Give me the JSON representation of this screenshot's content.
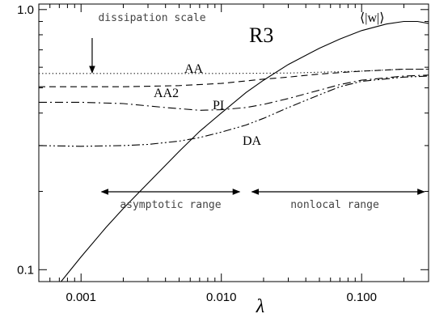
{
  "chart_data": {
    "type": "line",
    "title": "R3",
    "xlabel": "λ",
    "ylabel": "",
    "x_scale": "log",
    "y_scale": "log",
    "xlim": [
      0.0005,
      0.3
    ],
    "ylim": [
      0.09,
      1.05
    ],
    "x_ticks": [
      {
        "value": 0.001,
        "label": "0.001"
      },
      {
        "value": 0.01,
        "label": "0.010"
      },
      {
        "value": 0.1,
        "label": "0.100"
      }
    ],
    "y_ticks": [
      {
        "value": 0.1,
        "label": "0.1"
      },
      {
        "value": 1.0,
        "label": "1.0"
      }
    ],
    "grid": false,
    "series": [
      {
        "name": "⟨|w|⟩",
        "style": "solid",
        "x": [
          0.00072,
          0.001,
          0.0015,
          0.002,
          0.003,
          0.005,
          0.007,
          0.01,
          0.015,
          0.02,
          0.03,
          0.05,
          0.07,
          0.1,
          0.15,
          0.2,
          0.25,
          0.3
        ],
        "y": [
          0.09,
          0.112,
          0.145,
          0.172,
          0.215,
          0.285,
          0.34,
          0.4,
          0.48,
          0.535,
          0.615,
          0.71,
          0.77,
          0.83,
          0.88,
          0.9,
          0.9,
          0.885
        ]
      },
      {
        "name": "AA",
        "style": "dotted",
        "x": [
          0.0005,
          0.001,
          0.003,
          0.01,
          0.03,
          0.1,
          0.2,
          0.3
        ],
        "y": [
          0.568,
          0.568,
          0.568,
          0.568,
          0.57,
          0.58,
          0.59,
          0.59
        ]
      },
      {
        "name": "AA2",
        "style": "dashed",
        "x": [
          0.0005,
          0.001,
          0.002,
          0.005,
          0.01,
          0.02,
          0.03,
          0.05,
          0.1,
          0.2,
          0.3
        ],
        "y": [
          0.505,
          0.505,
          0.505,
          0.51,
          0.52,
          0.54,
          0.55,
          0.565,
          0.58,
          0.59,
          0.59
        ]
      },
      {
        "name": "PI",
        "style": "dash-dot",
        "x": [
          0.0005,
          0.001,
          0.002,
          0.004,
          0.007,
          0.01,
          0.015,
          0.02,
          0.03,
          0.05,
          0.07,
          0.1,
          0.2,
          0.3
        ],
        "y": [
          0.44,
          0.44,
          0.435,
          0.42,
          0.41,
          0.412,
          0.42,
          0.432,
          0.455,
          0.49,
          0.515,
          0.535,
          0.555,
          0.56
        ]
      },
      {
        "name": "DA",
        "style": "dash-dot-dot",
        "x": [
          0.0005,
          0.001,
          0.002,
          0.003,
          0.005,
          0.007,
          0.01,
          0.015,
          0.02,
          0.03,
          0.05,
          0.07,
          0.1,
          0.2,
          0.3
        ],
        "y": [
          0.3,
          0.298,
          0.3,
          0.303,
          0.312,
          0.322,
          0.338,
          0.36,
          0.382,
          0.42,
          0.47,
          0.505,
          0.53,
          0.55,
          0.555
        ]
      }
    ],
    "annotations": {
      "dissipation": {
        "text": "dissipation scale",
        "x": 0.0012
      },
      "asymptotic_range": {
        "text": "asymptotic range",
        "x_from": 0.0014,
        "x_to": 0.0135
      },
      "nonlocal_range": {
        "text": "nonlocal range",
        "x_from": 0.0165,
        "x_to": 0.28
      }
    }
  }
}
